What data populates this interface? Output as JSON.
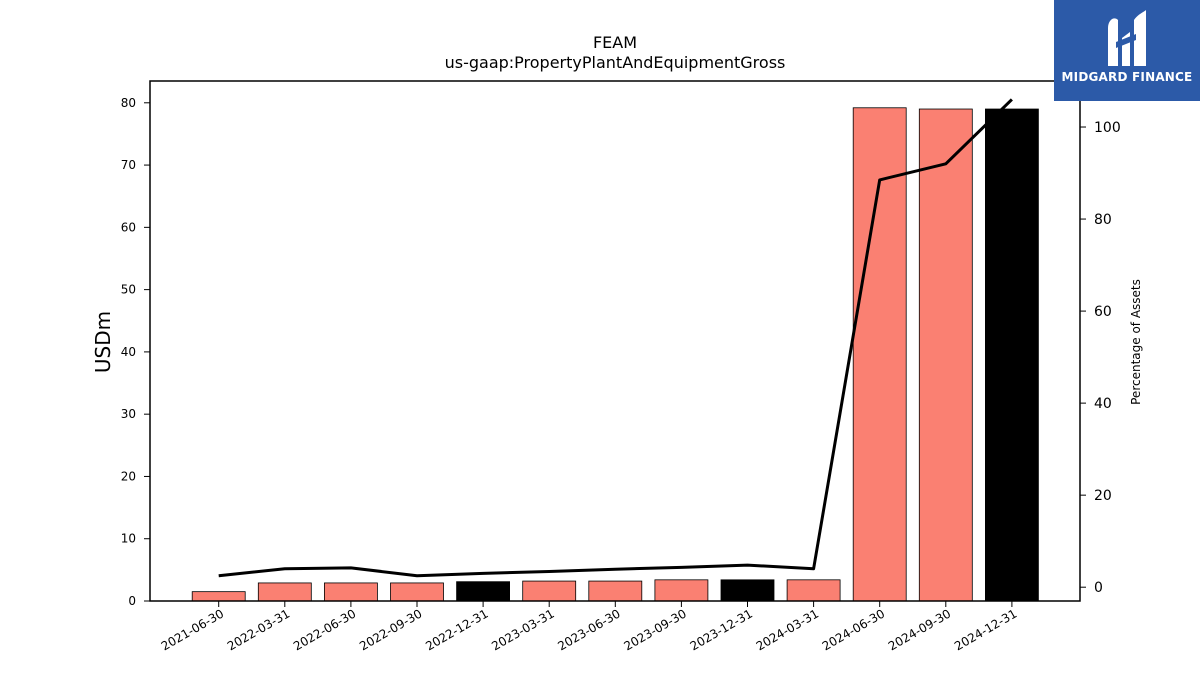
{
  "chart_data": {
    "type": "bar",
    "title": "FEAM",
    "subtitle": "us-gaap:PropertyPlantAndEquipmentGross",
    "ylabel": "USDm",
    "y2label": "Percentage of Assets",
    "categories": [
      "2021-06-30",
      "2022-03-31",
      "2022-06-30",
      "2022-09-30",
      "2022-12-31",
      "2023-03-31",
      "2023-06-30",
      "2023-09-30",
      "2023-12-31",
      "2024-03-31",
      "2024-06-30",
      "2024-09-30",
      "2024-12-31"
    ],
    "series": [
      {
        "values": [
          1.5,
          2.9,
          2.9,
          2.9,
          3.1,
          3.2,
          3.2,
          3.4,
          3.4,
          3.4,
          79.2,
          79.0,
          79.0
        ],
        "colors": [
          "#fa8072",
          "#fa8072",
          "#fa8072",
          "#fa8072",
          "#000000",
          "#fa8072",
          "#fa8072",
          "#fa8072",
          "#000000",
          "#fa8072",
          "#fa8072",
          "#fa8072",
          "#000000"
        ]
      },
      {
        "axis": "right",
        "values": [
          2.5,
          4.0,
          4.2,
          2.5,
          3.0,
          3.4,
          3.9,
          4.3,
          4.8,
          4.0,
          88.5,
          92.0,
          106.0
        ]
      }
    ],
    "ylim": [
      0,
      83.5
    ],
    "y2lim": [
      -3,
      110
    ],
    "yticks": [
      0,
      10,
      20,
      30,
      40,
      50,
      60,
      70,
      80
    ],
    "y2ticks": [
      0,
      20,
      40,
      60,
      80,
      100
    ],
    "grid": false,
    "colors": {
      "bar_default": "#fa8072",
      "bar_highlight": "#000000",
      "line": "#000000"
    }
  },
  "logo": {
    "text": "MIDGARD FINANCE",
    "background": "#2c5aa8"
  }
}
